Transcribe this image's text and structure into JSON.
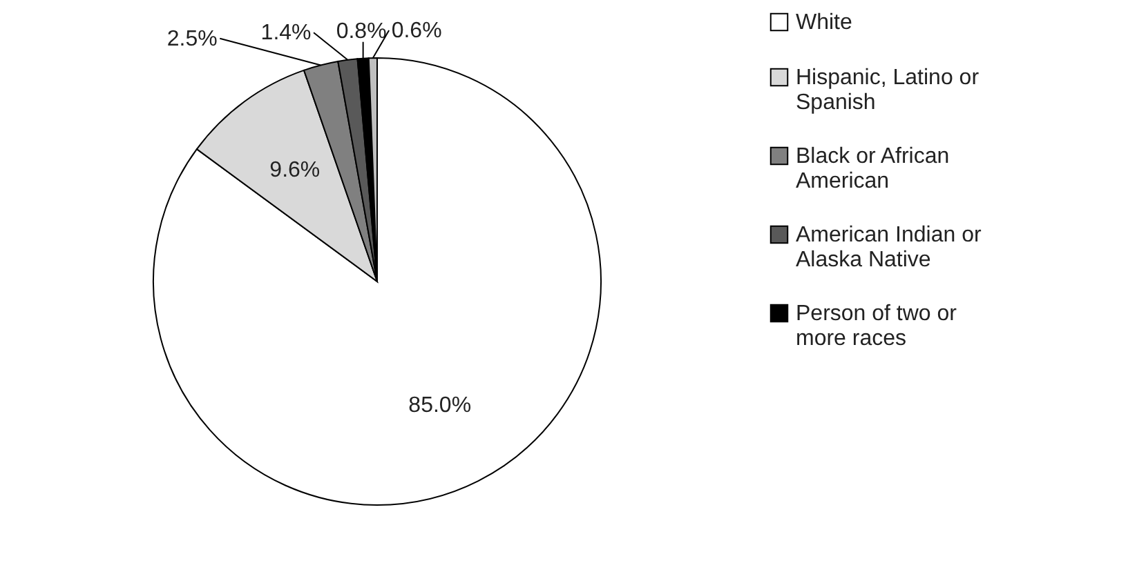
{
  "chart_data": {
    "type": "pie",
    "categories": [
      "White",
      "Hispanic, Latino or Spanish",
      "Black or African American",
      "American Indian or Alaska Native",
      "Person of two or more races",
      null
    ],
    "values": [
      85.0,
      9.6,
      2.5,
      1.4,
      0.8,
      0.6
    ],
    "colors": [
      "#ffffff",
      "#d9d9d9",
      "#808080",
      "#595959",
      "#000000",
      "#c0c0c0"
    ],
    "value_labels": [
      "85.0%",
      "9.6%",
      "2.5%",
      "1.4%",
      "0.8%",
      "0.6%"
    ],
    "legend": "right"
  }
}
